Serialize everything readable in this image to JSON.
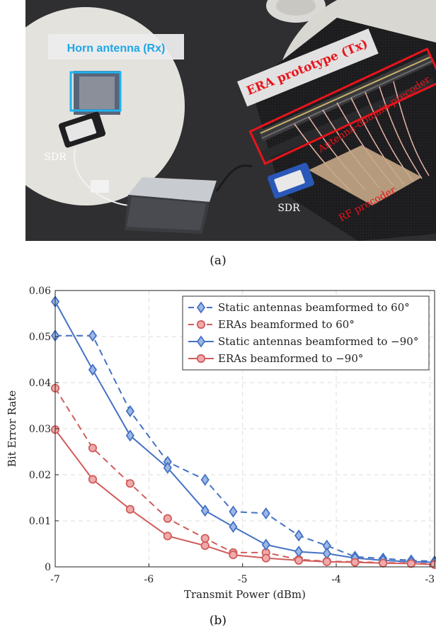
{
  "photo": {
    "labels": {
      "horn": "Horn antenna (Rx)",
      "era": "ERA prototype (Tx)",
      "antenna_domain": "Antenna-domain precoder",
      "rf_precoder": "RF precoder",
      "sdr_left": "SDR",
      "sdr_right": "SDR"
    },
    "colors": {
      "horn_box": "#1fb4f0",
      "era_box": "#e8141b",
      "label_bg": "#ececec",
      "background": "#2f2f31"
    }
  },
  "captions": {
    "a": "(a)",
    "b": "(b)"
  },
  "chart_data": {
    "type": "line",
    "xlabel": "Transmit Power (dBm)",
    "ylabel": "Bit Error Rate",
    "xlim": [
      -7,
      -2.95
    ],
    "ylim": [
      0,
      0.06
    ],
    "xticks": [
      -7,
      -6,
      -5,
      -4,
      -3
    ],
    "xtick_labels": [
      "-7",
      "-6",
      "-5",
      "-4",
      "-3"
    ],
    "yticks": [
      0,
      0.01,
      0.02,
      0.03,
      0.04,
      0.05,
      0.06
    ],
    "ytick_labels": [
      "0",
      "0.01",
      "0.02",
      "0.03",
      "0.04",
      "0.05",
      "0.06"
    ],
    "grid": true,
    "legend_position": "top-right",
    "series": [
      {
        "name": "Static antennas beamformed to 60°",
        "color": "#4472c4",
        "dash": "dashed",
        "marker": "diamond",
        "points": [
          [
            -7.0,
            0.0502
          ],
          [
            -6.6,
            0.0502
          ],
          [
            -6.2,
            0.0338
          ],
          [
            -5.8,
            0.0228
          ],
          [
            -5.4,
            0.0189
          ],
          [
            -5.1,
            0.012
          ],
          [
            -4.75,
            0.0116
          ],
          [
            -4.4,
            0.0068
          ],
          [
            -4.1,
            0.0046
          ],
          [
            -3.8,
            0.0022
          ],
          [
            -3.5,
            0.0018
          ],
          [
            -3.2,
            0.0014
          ],
          [
            -2.95,
            0.0012
          ]
        ]
      },
      {
        "name": "ERAs beamformed to 60°",
        "color": "#d05c5c",
        "dash": "dashed",
        "marker": "circle",
        "points": [
          [
            -7.0,
            0.0388
          ],
          [
            -6.6,
            0.0258
          ],
          [
            -6.2,
            0.0181
          ],
          [
            -5.8,
            0.0105
          ],
          [
            -5.4,
            0.0062
          ],
          [
            -5.1,
            0.0031
          ],
          [
            -4.75,
            0.0031
          ],
          [
            -4.4,
            0.0016
          ],
          [
            -4.1,
            0.0012
          ],
          [
            -3.8,
            0.0011
          ],
          [
            -3.5,
            0.0009
          ],
          [
            -3.2,
            0.0008
          ],
          [
            -2.95,
            0.0006
          ]
        ]
      },
      {
        "name": "Static antennas beamformed to −90°",
        "color": "#4472c4",
        "dash": "solid",
        "marker": "diamond",
        "points": [
          [
            -7.0,
            0.0576
          ],
          [
            -6.6,
            0.0428
          ],
          [
            -6.2,
            0.0285
          ],
          [
            -5.8,
            0.0215
          ],
          [
            -5.4,
            0.0122
          ],
          [
            -5.1,
            0.0087
          ],
          [
            -4.75,
            0.0048
          ],
          [
            -4.4,
            0.0033
          ],
          [
            -4.1,
            0.0029
          ],
          [
            -3.8,
            0.0019
          ],
          [
            -3.5,
            0.0014
          ],
          [
            -3.2,
            0.0011
          ],
          [
            -2.95,
            0.001
          ]
        ]
      },
      {
        "name": "ERAs beamformed to −90°",
        "color": "#d05c5c",
        "dash": "solid",
        "marker": "circle",
        "points": [
          [
            -7.0,
            0.0298
          ],
          [
            -6.6,
            0.019
          ],
          [
            -6.2,
            0.0125
          ],
          [
            -5.8,
            0.0067
          ],
          [
            -5.4,
            0.0046
          ],
          [
            -5.1,
            0.0026
          ],
          [
            -4.75,
            0.0019
          ],
          [
            -4.4,
            0.0014
          ],
          [
            -4.1,
            0.0011
          ],
          [
            -3.8,
            0.001
          ],
          [
            -3.5,
            0.0008
          ],
          [
            -3.2,
            0.0007
          ],
          [
            -2.95,
            0.0005
          ]
        ]
      }
    ]
  }
}
